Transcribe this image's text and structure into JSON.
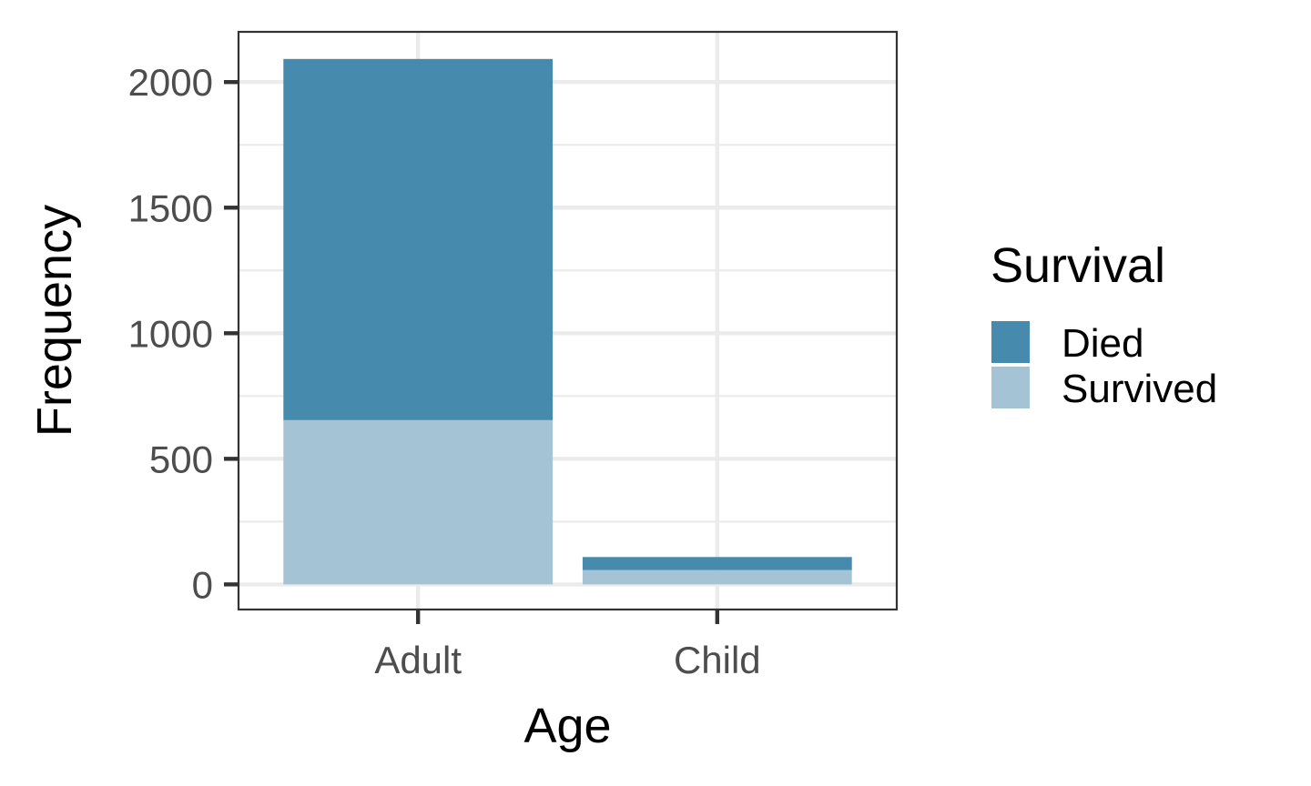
{
  "chart_data": {
    "type": "bar",
    "stacked": true,
    "categories": [
      "Adult",
      "Child"
    ],
    "series": [
      {
        "name": "Survived",
        "values": [
          654,
          57
        ],
        "color": "#a4c4d6"
      },
      {
        "name": "Died",
        "values": [
          1438,
          52
        ],
        "color": "#468aae"
      }
    ],
    "xlabel": "Age",
    "ylabel": "Frequency",
    "ylim": [
      -100,
      2200
    ],
    "yticks": [
      0,
      500,
      1000,
      1500,
      2000
    ],
    "ytick_labels": [
      "0",
      "500",
      "1000",
      "1500",
      "2000"
    ],
    "grid": true,
    "legend": {
      "title": "Survival",
      "position": "right",
      "entries": [
        {
          "label": "Died",
          "color": "#468aae"
        },
        {
          "label": "Survived",
          "color": "#a4c4d6"
        }
      ]
    }
  }
}
